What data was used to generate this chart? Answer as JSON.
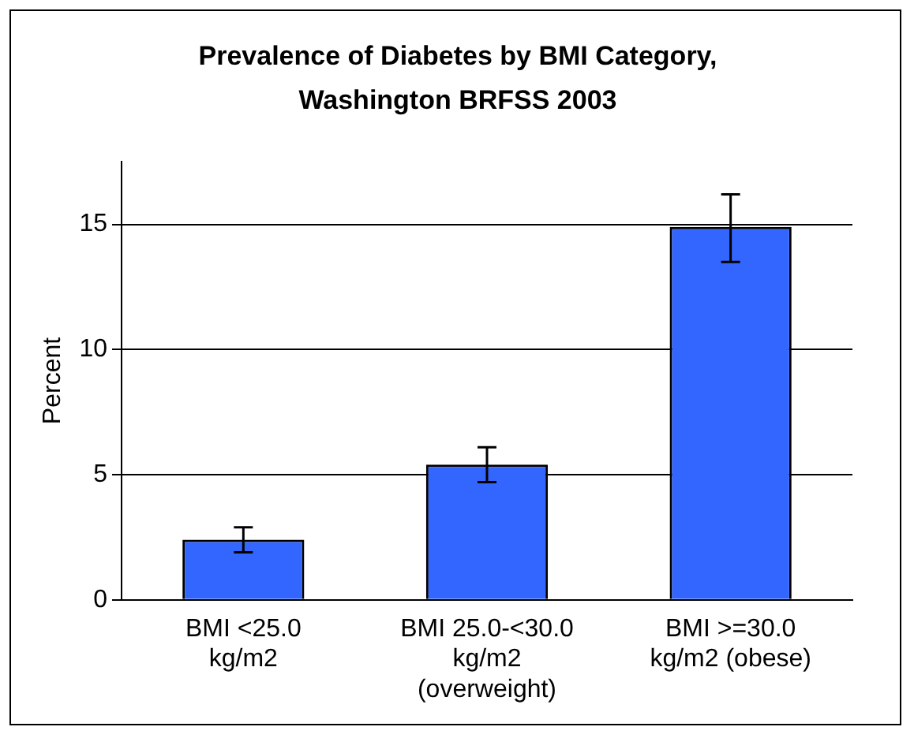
{
  "chart_data": {
    "type": "bar",
    "title": "Prevalence of Diabetes by BMI Category, Washington BRFSS 2003",
    "ylabel": "Percent",
    "categories": [
      "BMI <25.0 kg/m2",
      "BMI 25.0-<30.0 kg/m2 (overweight)",
      "BMI >=30.0 kg/m2 (obese)"
    ],
    "values": [
      2.4,
      5.4,
      14.9
    ],
    "errors": [
      [
        1.9,
        2.9
      ],
      [
        4.7,
        6.1
      ],
      [
        13.5,
        16.2
      ]
    ],
    "color": "#3366ff",
    "ylim": [
      0,
      17.5
    ],
    "yticks": [
      0,
      5,
      10,
      15
    ],
    "grid": "y",
    "legend": false
  }
}
